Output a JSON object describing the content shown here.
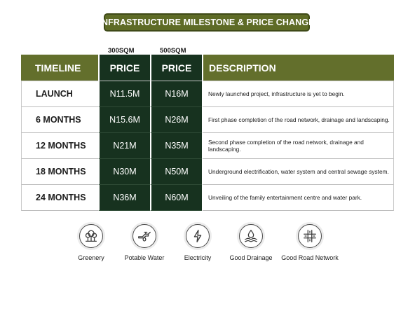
{
  "title": "INFRASTRUCTURE MILESTONE & PRICE CHANGE",
  "size_labels": [
    "300SQM",
    "500SQM"
  ],
  "headers": {
    "timeline": "TIMELINE",
    "price_300": "PRICE",
    "price_500": "PRICE",
    "description": "DESCRIPTION"
  },
  "rows": [
    {
      "timeline": "LAUNCH",
      "price_300": "N11.5M",
      "price_500": "N16M",
      "description": "Newly launched project, infrastructure is yet to begin."
    },
    {
      "timeline": "6 MONTHS",
      "price_300": "N15.6M",
      "price_500": "N26M",
      "description": "First phase completion of the road network, drainage and landscaping."
    },
    {
      "timeline": "12 MONTHS",
      "price_300": "N21M",
      "price_500": "N35M",
      "description": "Second phase completion of the road network, drainage and landscaping."
    },
    {
      "timeline": "18 MONTHS",
      "price_300": "N30M",
      "price_500": "N50M",
      "description": "Underground electrification, water system and central sewage system."
    },
    {
      "timeline": "24 MONTHS",
      "price_300": "N36M",
      "price_500": "N60M",
      "description": "Unveiling of the family entertainment centre and water park."
    }
  ],
  "amenities": [
    {
      "label": "Greenery",
      "icon": "greenery-icon"
    },
    {
      "label": "Potable Water",
      "icon": "water-tap-icon"
    },
    {
      "label": "Electricity",
      "icon": "lightning-icon"
    },
    {
      "label": "Good Drainage",
      "icon": "drainage-icon"
    },
    {
      "label": "Good Road Network",
      "icon": "road-network-icon"
    }
  ],
  "colors": {
    "accent_olive": "#636f2c",
    "price_dark_green": "#17321f",
    "text": "#1c1c1c"
  }
}
